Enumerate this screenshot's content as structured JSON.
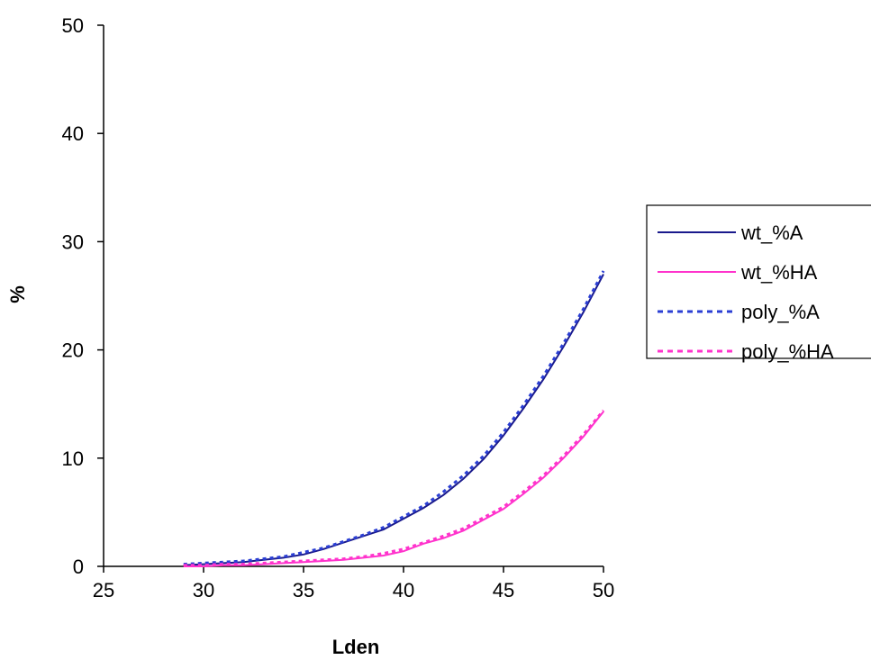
{
  "chart_data": {
    "type": "line",
    "title": "",
    "xlabel": "Lden",
    "ylabel": "%",
    "xlim": [
      25,
      50
    ],
    "ylim": [
      0,
      50
    ],
    "xticks": [
      "25",
      "30",
      "35",
      "40",
      "45",
      "50"
    ],
    "yticks": [
      "0",
      "10",
      "20",
      "30",
      "40",
      "50"
    ],
    "grid": false,
    "legend_position": "right",
    "x": [
      29,
      30,
      31,
      32,
      33,
      34,
      35,
      36,
      37,
      38,
      39,
      40,
      41,
      42,
      43,
      44,
      45,
      46,
      47,
      48,
      49,
      50
    ],
    "series": [
      {
        "name": "wt_%A",
        "color": "#1a1a8c",
        "style": "solid",
        "values": [
          0.1,
          0.2,
          0.3,
          0.4,
          0.6,
          0.8,
          1.1,
          1.6,
          2.2,
          2.8,
          3.4,
          4.4,
          5.4,
          6.6,
          8.1,
          9.9,
          12.1,
          14.6,
          17.3,
          20.3,
          23.5,
          27.0
        ]
      },
      {
        "name": "wt_%HA",
        "color": "#ff33cc",
        "style": "solid",
        "values": [
          0.0,
          0.0,
          0.1,
          0.1,
          0.2,
          0.3,
          0.4,
          0.5,
          0.6,
          0.8,
          1.0,
          1.4,
          2.1,
          2.6,
          3.3,
          4.3,
          5.3,
          6.7,
          8.2,
          10.0,
          12.0,
          14.3
        ]
      },
      {
        "name": "poly_%A",
        "color": "#2b3fd4",
        "style": "dotted",
        "values": [
          0.2,
          0.3,
          0.4,
          0.5,
          0.7,
          0.9,
          1.3,
          1.7,
          2.3,
          2.9,
          3.6,
          4.6,
          5.6,
          6.9,
          8.4,
          10.2,
          12.4,
          14.9,
          17.6,
          20.6,
          23.8,
          27.3
        ]
      },
      {
        "name": "poly_%HA",
        "color": "#ff33cc",
        "style": "dotted",
        "values": [
          0.1,
          0.1,
          0.2,
          0.2,
          0.3,
          0.4,
          0.5,
          0.6,
          0.7,
          0.9,
          1.2,
          1.6,
          2.2,
          2.8,
          3.5,
          4.5,
          5.5,
          6.9,
          8.4,
          10.2,
          12.2,
          14.4
        ]
      }
    ]
  }
}
